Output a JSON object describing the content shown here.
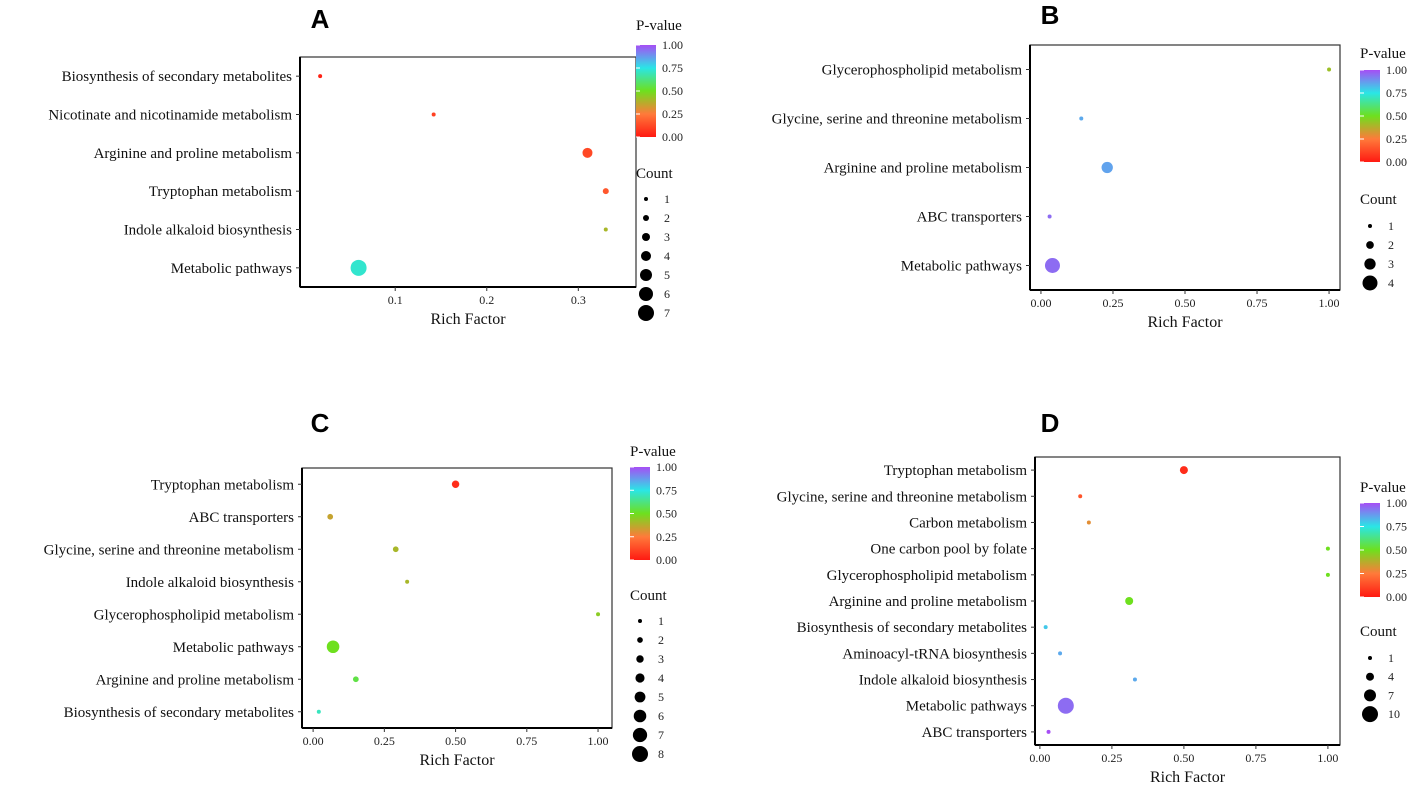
{
  "colors": {
    "p0": "#ff1a12",
    "p25": "#ff7a3a",
    "p50": "#6ee01e",
    "p75": "#2ae6e6",
    "p100": "#a64ef5"
  },
  "chart_data": [
    {
      "panel": "A",
      "type": "scatter",
      "xlabel": "Rich Factor",
      "xlim": [
        -0.004,
        0.363
      ],
      "xticks": [
        0.1,
        0.2,
        0.3
      ],
      "xtick_labels": [
        "0.1",
        "0.2",
        "0.3"
      ],
      "color_legend_title": "P-value",
      "color_ticks": [
        "1.00",
        "0.75",
        "0.50",
        "0.25",
        "0.00"
      ],
      "size_legend_title": "Count",
      "size_legend": [
        1,
        2,
        3,
        4,
        5,
        6,
        7
      ],
      "points": [
        {
          "pathway": "Biosynthesis of secondary metabolites",
          "rich_factor": 0.018,
          "count": 1,
          "p_value": 0.02
        },
        {
          "pathway": "Nicotinate and nicotinamide metabolism",
          "rich_factor": 0.142,
          "count": 1,
          "p_value": 0.1
        },
        {
          "pathway": "Arginine and proline metabolism",
          "rich_factor": 0.31,
          "count": 4,
          "p_value": 0.12
        },
        {
          "pathway": "Tryptophan metabolism",
          "rich_factor": 0.33,
          "count": 2,
          "p_value": 0.16
        },
        {
          "pathway": "Indole alkaloid biosynthesis",
          "rich_factor": 0.33,
          "count": 1,
          "p_value": 0.4
        },
        {
          "pathway": "Metabolic pathways",
          "rich_factor": 0.06,
          "count": 7,
          "p_value": 0.72
        }
      ]
    },
    {
      "panel": "B",
      "type": "scatter",
      "xlabel": "Rich Factor",
      "xlim": [
        -0.038,
        1.038
      ],
      "xticks": [
        0,
        0.25,
        0.5,
        0.75,
        1
      ],
      "xtick_labels": [
        "0.00",
        "0.25",
        "0.50",
        "0.75",
        "1.00"
      ],
      "color_legend_title": "P-value",
      "color_ticks": [
        "1.00",
        "0.75",
        "0.50",
        "0.25",
        "0.00"
      ],
      "size_legend_title": "Count",
      "size_legend": [
        1,
        2,
        3,
        4
      ],
      "points": [
        {
          "pathway": "Glycerophospholipid metabolism",
          "rich_factor": 1.0,
          "count": 1,
          "p_value": 0.42
        },
        {
          "pathway": "Glycine, serine and threonine metabolism",
          "rich_factor": 0.14,
          "count": 1,
          "p_value": 0.85
        },
        {
          "pathway": "Arginine and proline metabolism",
          "rich_factor": 0.23,
          "count": 3,
          "p_value": 0.86
        },
        {
          "pathway": "ABC transporters",
          "rich_factor": 0.03,
          "count": 1,
          "p_value": 0.95
        },
        {
          "pathway": "Metabolic pathways",
          "rich_factor": 0.04,
          "count": 4,
          "p_value": 0.95
        }
      ]
    },
    {
      "panel": "C",
      "type": "scatter",
      "xlabel": "Rich Factor",
      "xlim": [
        -0.039,
        1.049
      ],
      "xticks": [
        0,
        0.25,
        0.5,
        0.75,
        1
      ],
      "xtick_labels": [
        "0.00",
        "0.25",
        "0.50",
        "0.75",
        "1.00"
      ],
      "color_legend_title": "P-value",
      "color_ticks": [
        "1.00",
        "0.75",
        "0.50",
        "0.25",
        "0.00"
      ],
      "size_legend_title": "Count",
      "size_legend": [
        1,
        2,
        3,
        4,
        5,
        6,
        7,
        8
      ],
      "points": [
        {
          "pathway": "Tryptophan metabolism",
          "rich_factor": 0.5,
          "count": 3,
          "p_value": 0.05
        },
        {
          "pathway": "ABC transporters",
          "rich_factor": 0.06,
          "count": 2,
          "p_value": 0.35
        },
        {
          "pathway": "Glycine, serine and threonine metabolism",
          "rich_factor": 0.29,
          "count": 2,
          "p_value": 0.4
        },
        {
          "pathway": "Indole alkaloid biosynthesis",
          "rich_factor": 0.33,
          "count": 1,
          "p_value": 0.4
        },
        {
          "pathway": "Glycerophospholipid metabolism",
          "rich_factor": 1.0,
          "count": 1,
          "p_value": 0.45
        },
        {
          "pathway": "Metabolic pathways",
          "rich_factor": 0.07,
          "count": 6,
          "p_value": 0.5
        },
        {
          "pathway": "Arginine and proline metabolism",
          "rich_factor": 0.15,
          "count": 2,
          "p_value": 0.55
        },
        {
          "pathway": "Biosynthesis of secondary metabolites",
          "rich_factor": 0.02,
          "count": 1,
          "p_value": 0.7
        }
      ]
    },
    {
      "panel": "D",
      "type": "scatter",
      "xlabel": "Rich Factor",
      "xlim": [
        -0.017,
        1.042
      ],
      "xticks": [
        0,
        0.25,
        0.5,
        0.75,
        1
      ],
      "xtick_labels": [
        "0.00",
        "0.25",
        "0.50",
        "0.75",
        "1.00"
      ],
      "color_legend_title": "P-value",
      "color_ticks": [
        "1.00",
        "0.75",
        "0.50",
        "0.25",
        "0.00"
      ],
      "size_legend_title": "Count",
      "size_legend": [
        1,
        4,
        7,
        10
      ],
      "points": [
        {
          "pathway": "Tryptophan metabolism",
          "rich_factor": 0.5,
          "count": 4,
          "p_value": 0.05
        },
        {
          "pathway": "Glycine, serine and threonine metabolism",
          "rich_factor": 0.14,
          "count": 1,
          "p_value": 0.15
        },
        {
          "pathway": "Carbon metabolism",
          "rich_factor": 0.17,
          "count": 1,
          "p_value": 0.3
        },
        {
          "pathway": "One carbon pool by folate",
          "rich_factor": 1.0,
          "count": 1,
          "p_value": 0.5
        },
        {
          "pathway": "Glycerophospholipid metabolism",
          "rich_factor": 1.0,
          "count": 1,
          "p_value": 0.5
        },
        {
          "pathway": "Arginine and proline metabolism",
          "rich_factor": 0.31,
          "count": 4,
          "p_value": 0.5
        },
        {
          "pathway": "Biosynthesis of secondary metabolites",
          "rich_factor": 0.02,
          "count": 1,
          "p_value": 0.8
        },
        {
          "pathway": "Aminoacyl-tRNA biosynthesis",
          "rich_factor": 0.07,
          "count": 1,
          "p_value": 0.85
        },
        {
          "pathway": "Indole alkaloid biosynthesis",
          "rich_factor": 0.33,
          "count": 1,
          "p_value": 0.85
        },
        {
          "pathway": "Metabolic pathways",
          "rich_factor": 0.09,
          "count": 10,
          "p_value": 0.95
        },
        {
          "pathway": "ABC transporters",
          "rich_factor": 0.03,
          "count": 1,
          "p_value": 1.0
        }
      ]
    }
  ]
}
